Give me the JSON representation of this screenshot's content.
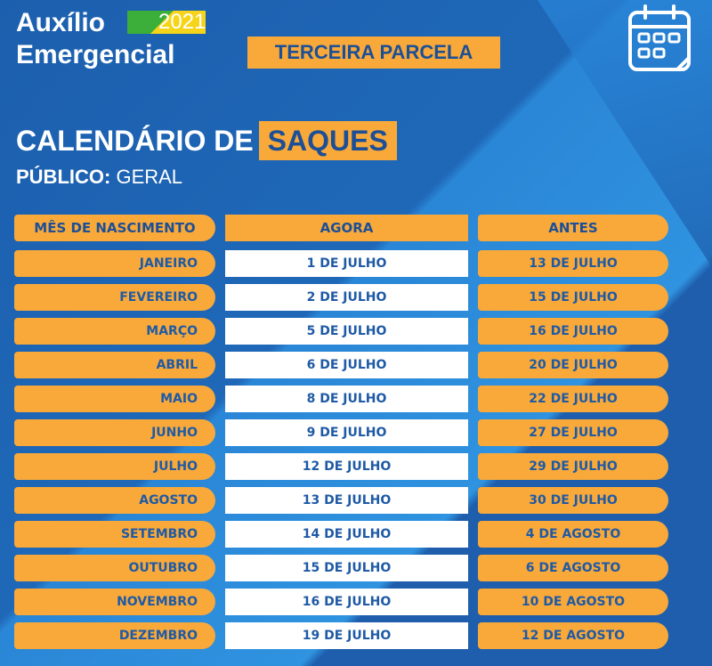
{
  "brand": {
    "line1": "Auxílio",
    "line2": "Emergencial",
    "year": "2021"
  },
  "installment_label": "TERCEIRA PARCELA",
  "icon": "calendar-icon",
  "title": {
    "prefix": "CALENDÁRIO DE",
    "highlight": "SAQUES"
  },
  "audience": {
    "label": "PÚBLICO:",
    "value": "GERAL"
  },
  "colors": {
    "background": "#1f66b4",
    "orange": "#f8a93a",
    "text_blue": "#1d4f96",
    "white": "#ffffff"
  },
  "table": {
    "headers": [
      "MÊS DE NASCIMENTO",
      "AGORA",
      "ANTES"
    ],
    "rows": [
      {
        "month": "JANEIRO",
        "now": "1 DE JULHO",
        "before": "13 DE JULHO"
      },
      {
        "month": "FEVEREIRO",
        "now": "2 DE JULHO",
        "before": "15 DE JULHO"
      },
      {
        "month": "MARÇO",
        "now": "5 DE JULHO",
        "before": "16 DE JULHO"
      },
      {
        "month": "ABRIL",
        "now": "6 DE JULHO",
        "before": "20 DE JULHO"
      },
      {
        "month": "MAIO",
        "now": "8 DE JULHO",
        "before": "22 DE JULHO"
      },
      {
        "month": "JUNHO",
        "now": "9 DE JULHO",
        "before": "27 DE JULHO"
      },
      {
        "month": "JULHO",
        "now": "12 DE JULHO",
        "before": "29 DE JULHO"
      },
      {
        "month": "AGOSTO",
        "now": "13 DE JULHO",
        "before": "30 DE JULHO"
      },
      {
        "month": "SETEMBRO",
        "now": "14 DE JULHO",
        "before": "4 DE AGOSTO"
      },
      {
        "month": "OUTUBRO",
        "now": "15 DE JULHO",
        "before": "6 DE AGOSTO"
      },
      {
        "month": "NOVEMBRO",
        "now": "16 DE JULHO",
        "before": "10 DE AGOSTO"
      },
      {
        "month": "DEZEMBRO",
        "now": "19 DE JULHO",
        "before": "12 DE AGOSTO"
      }
    ]
  }
}
